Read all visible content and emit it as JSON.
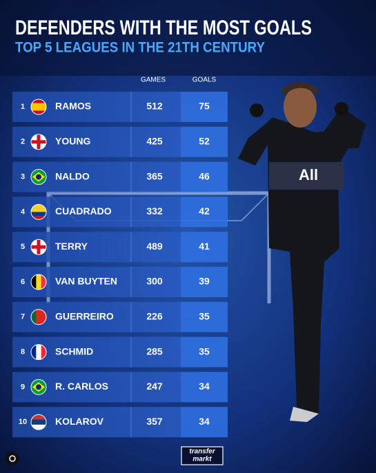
{
  "header": {
    "title": "DEFENDERS WITH THE MOST GOALS",
    "subtitle": "TOP 5 LEAGUES IN THE 21TH CENTURY"
  },
  "table": {
    "columns": [
      "GAMES",
      "GOALS"
    ],
    "rows": [
      [
        "1",
        "RAMOS",
        512,
        75
      ],
      [
        "2",
        "YOUNG",
        425,
        52
      ],
      [
        "3",
        "NALDO",
        365,
        46
      ],
      [
        "4",
        "CUADRADO",
        332,
        42
      ],
      [
        "5",
        "TERRY",
        489,
        41
      ],
      [
        "6",
        "VAN BUYTEN",
        300,
        39
      ],
      [
        "7",
        "GUERREIRO",
        226,
        35
      ],
      [
        "8",
        "SCHMID",
        285,
        35
      ],
      [
        "9",
        "R. CARLOS",
        247,
        34
      ],
      [
        "10",
        "KOLAROV",
        357,
        34
      ]
    ]
  },
  "footer": {
    "logo": [
      "transfer",
      "markt"
    ]
  }
}
